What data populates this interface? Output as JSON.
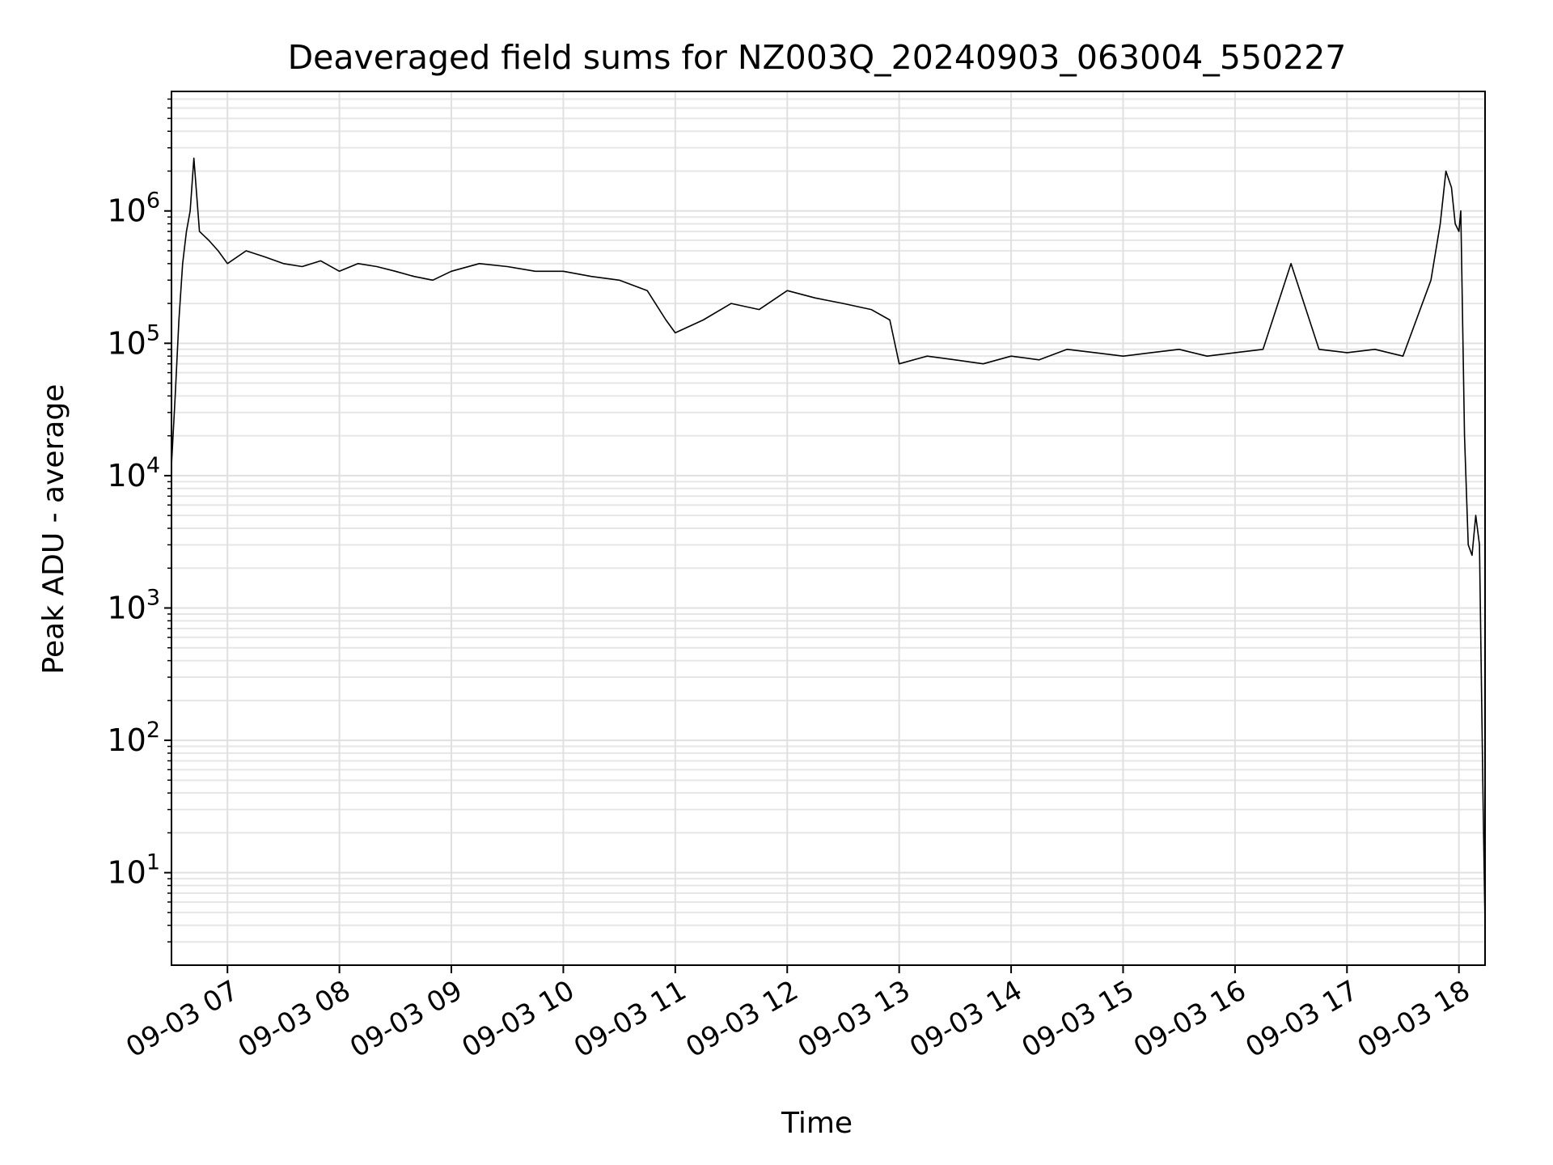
{
  "chart_data": {
    "type": "line",
    "title": "Deaveraged field sums for NZ003Q_20240903_063004_550227",
    "xlabel": "Time",
    "ylabel": "Peak ADU - average",
    "yscale": "log",
    "ylim": [
      2,
      8000000
    ],
    "xlim": [
      "2024-09-03 06:30",
      "2024-09-03 18:14"
    ],
    "grid": true,
    "color": "#000000",
    "x_ticks": [
      {
        "t": "2024-09-03 07:00",
        "label": "09-03 07"
      },
      {
        "t": "2024-09-03 08:00",
        "label": "09-03 08"
      },
      {
        "t": "2024-09-03 09:00",
        "label": "09-03 09"
      },
      {
        "t": "2024-09-03 10:00",
        "label": "09-03 10"
      },
      {
        "t": "2024-09-03 11:00",
        "label": "09-03 11"
      },
      {
        "t": "2024-09-03 12:00",
        "label": "09-03 12"
      },
      {
        "t": "2024-09-03 13:00",
        "label": "09-03 13"
      },
      {
        "t": "2024-09-03 14:00",
        "label": "09-03 14"
      },
      {
        "t": "2024-09-03 15:00",
        "label": "09-03 15"
      },
      {
        "t": "2024-09-03 16:00",
        "label": "09-03 16"
      },
      {
        "t": "2024-09-03 17:00",
        "label": "09-03 17"
      },
      {
        "t": "2024-09-03 18:00",
        "label": "09-03 18"
      }
    ],
    "y_ticks": [
      {
        "value": 10,
        "base": "10",
        "exp": "1"
      },
      {
        "value": 100,
        "base": "10",
        "exp": "2"
      },
      {
        "value": 1000,
        "base": "10",
        "exp": "3"
      },
      {
        "value": 10000,
        "base": "10",
        "exp": "4"
      },
      {
        "value": 100000,
        "base": "10",
        "exp": "5"
      },
      {
        "value": 1000000,
        "base": "10",
        "exp": "6"
      }
    ],
    "series": [
      {
        "x": [
          "2024-09-03 06:30",
          "2024-09-03 06:32",
          "2024-09-03 06:34",
          "2024-09-03 06:36",
          "2024-09-03 06:38",
          "2024-09-03 06:40",
          "2024-09-03 06:42",
          "2024-09-03 06:45",
          "2024-09-03 06:50",
          "2024-09-03 06:55",
          "2024-09-03 07:00",
          "2024-09-03 07:10",
          "2024-09-03 07:20",
          "2024-09-03 07:30",
          "2024-09-03 07:40",
          "2024-09-03 07:50",
          "2024-09-03 08:00",
          "2024-09-03 08:10",
          "2024-09-03 08:20",
          "2024-09-03 08:30",
          "2024-09-03 08:40",
          "2024-09-03 08:50",
          "2024-09-03 09:00",
          "2024-09-03 09:15",
          "2024-09-03 09:30",
          "2024-09-03 09:45",
          "2024-09-03 10:00",
          "2024-09-03 10:15",
          "2024-09-03 10:30",
          "2024-09-03 10:45",
          "2024-09-03 10:55",
          "2024-09-03 11:00",
          "2024-09-03 11:15",
          "2024-09-03 11:30",
          "2024-09-03 11:45",
          "2024-09-03 12:00",
          "2024-09-03 12:15",
          "2024-09-03 12:30",
          "2024-09-03 12:45",
          "2024-09-03 12:55",
          "2024-09-03 13:00",
          "2024-09-03 13:15",
          "2024-09-03 13:30",
          "2024-09-03 13:45",
          "2024-09-03 14:00",
          "2024-09-03 14:15",
          "2024-09-03 14:30",
          "2024-09-03 14:45",
          "2024-09-03 15:00",
          "2024-09-03 15:15",
          "2024-09-03 15:30",
          "2024-09-03 15:45",
          "2024-09-03 16:00",
          "2024-09-03 16:15",
          "2024-09-03 16:30",
          "2024-09-03 16:45",
          "2024-09-03 17:00",
          "2024-09-03 17:15",
          "2024-09-03 17:30",
          "2024-09-03 17:45",
          "2024-09-03 17:50",
          "2024-09-03 17:53",
          "2024-09-03 17:56",
          "2024-09-03 17:58",
          "2024-09-03 18:00",
          "2024-09-03 18:01",
          "2024-09-03 18:03",
          "2024-09-03 18:05",
          "2024-09-03 18:07",
          "2024-09-03 18:09",
          "2024-09-03 18:11",
          "2024-09-03 18:13",
          "2024-09-03 18:14"
        ],
        "y": [
          12000,
          40000,
          150000,
          400000,
          700000,
          1000000,
          2500000,
          700000,
          600000,
          500000,
          400000,
          500000,
          450000,
          400000,
          380000,
          420000,
          350000,
          400000,
          380000,
          350000,
          320000,
          300000,
          350000,
          400000,
          380000,
          350000,
          350000,
          320000,
          300000,
          250000,
          150000,
          120000,
          150000,
          200000,
          180000,
          250000,
          220000,
          200000,
          180000,
          150000,
          70000,
          80000,
          75000,
          70000,
          80000,
          75000,
          90000,
          85000,
          80000,
          85000,
          90000,
          80000,
          85000,
          90000,
          400000,
          90000,
          85000,
          90000,
          80000,
          300000,
          800000,
          2000000,
          1500000,
          800000,
          700000,
          1000000,
          20000,
          3000,
          2500,
          5000,
          3000,
          30,
          4
        ]
      }
    ]
  }
}
